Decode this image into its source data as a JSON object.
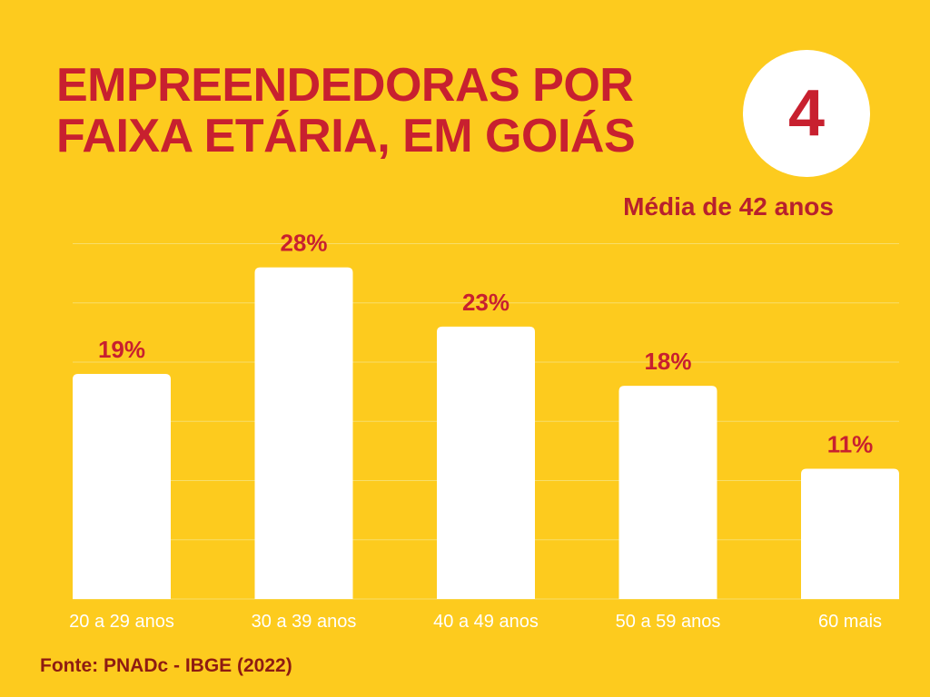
{
  "header": {
    "title_line1": "EMPREENDEDORAS POR",
    "title_line2": "FAIXA ETÁRIA, EM GOIÁS",
    "badge_number": "4",
    "subtitle": "Média de 42 anos"
  },
  "footer": {
    "source": "Fonte: PNADc - IBGE (2022)"
  },
  "colors": {
    "background": "#FDCB1E",
    "accent": "#C8202F",
    "bar": "#FFFFFF",
    "gridline": "#F8DE6A",
    "tick_text": "#FFFFFF"
  },
  "chart_data": {
    "type": "bar",
    "categories": [
      "20 a 29 anos",
      "30 a 39 anos",
      "40 a 49 anos",
      "50 a 59 anos",
      "60 mais"
    ],
    "values": [
      19,
      28,
      23,
      18,
      11
    ],
    "data_labels": [
      "19%",
      "28%",
      "23%",
      "18%",
      "11%"
    ],
    "unit": "%",
    "title": "",
    "xlabel": "",
    "ylabel": "",
    "ylim": [
      0,
      30
    ],
    "grid": true
  }
}
